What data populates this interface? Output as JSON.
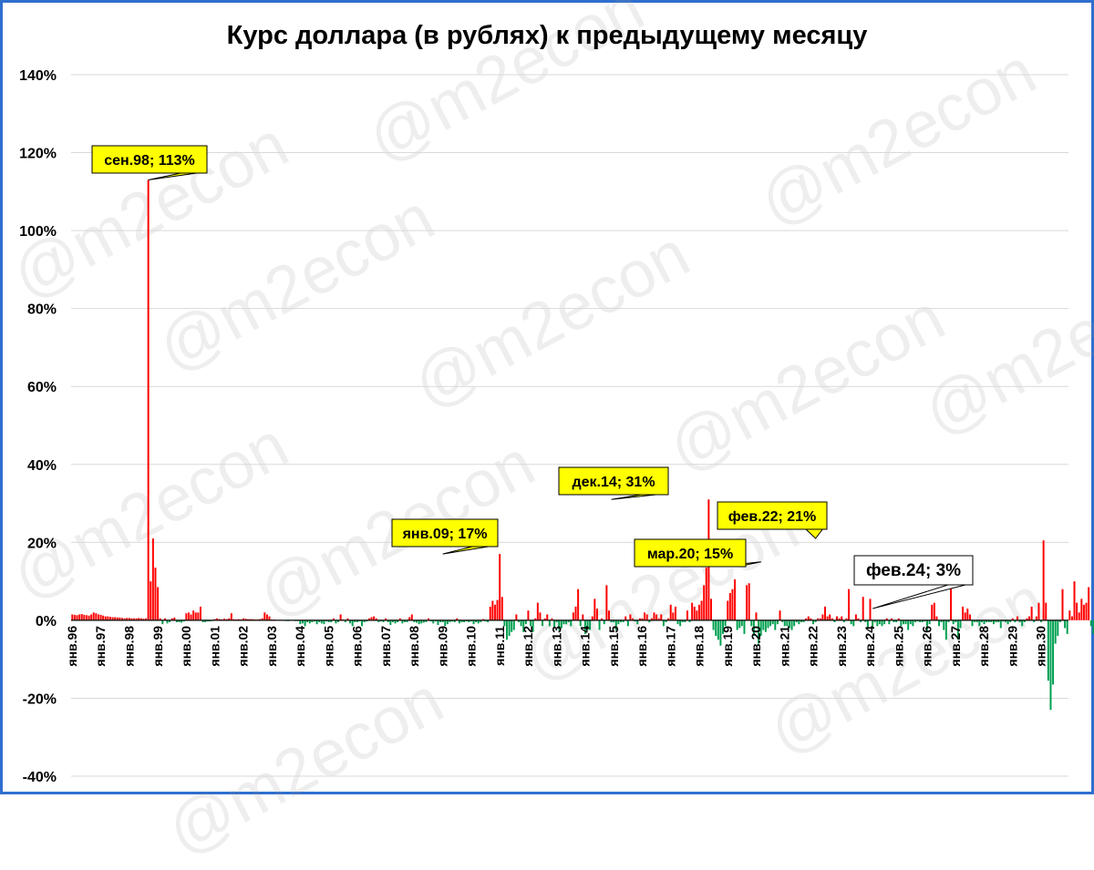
{
  "watermark": "@m2econ",
  "chart_data": {
    "type": "bar",
    "title": "Курс доллара (в рублях) к предыдущему месяцу",
    "xlabel": "",
    "ylabel": "",
    "ylim": [
      -40,
      140
    ],
    "y_ticks": [
      "-40%",
      "-20%",
      "0%",
      "20%",
      "40%",
      "60%",
      "80%",
      "100%",
      "120%",
      "140%"
    ],
    "y_tick_values": [
      -40,
      -20,
      0,
      20,
      40,
      60,
      80,
      100,
      120,
      140
    ],
    "x_tick_labels": [
      "янв.96",
      "янв.97",
      "янв.98",
      "янв.99",
      "янв.00",
      "янв.01",
      "янв.02",
      "янв.03",
      "янв.04",
      "янв.05",
      "янв.06",
      "янв.07",
      "янв.08",
      "янв.09",
      "янв.10",
      "янв.11",
      "янв.12",
      "янв.13",
      "янв.14",
      "янв.15",
      "янв.16",
      "янв.17",
      "янв.18",
      "янв.19",
      "янв.20",
      "янв.21",
      "янв.22",
      "янв.23",
      "янв.24",
      "янв.25",
      "янв.26",
      "янв.27",
      "янв.28",
      "янв.29",
      "янв.30"
    ],
    "start": "янв.96",
    "grid": true,
    "positive_color": "#ff0000",
    "negative_color": "#00a050",
    "callout_color": "#ffff00",
    "series": [
      {
        "values": [
          1.5,
          1.4,
          1.3,
          1.5,
          1.6,
          1.4,
          1.3,
          1.2,
          1.5,
          2.0,
          1.8,
          1.5,
          1.4,
          1.2,
          1.0,
          1.0,
          0.9,
          0.8,
          0.8,
          0.7,
          0.7,
          0.6,
          0.5,
          0.6,
          0.6,
          0.5,
          0.5,
          0.5,
          0.6,
          0.5,
          0.4,
          0.5,
          113,
          10,
          21,
          13.5,
          8.5,
          0.5,
          -1,
          0.5,
          -0.8,
          -0.5,
          0.5,
          0.7,
          -0.5,
          -0.5,
          -0.6,
          -0.3,
          1.8,
          2.0,
          1.5,
          2.5,
          2.0,
          2.0,
          3.5,
          -0.5,
          -0.5,
          -0.3,
          -0.3,
          -0.2,
          0.3,
          0.5,
          0.3,
          0.2,
          0.4,
          0.3,
          0.5,
          1.8,
          0.3,
          0.2,
          0.3,
          0.2,
          0.5,
          0.4,
          0.3,
          0.3,
          0.3,
          0.2,
          0.2,
          0.3,
          0.5,
          2.0,
          1.5,
          1.0,
          0.2,
          0.2,
          0.1,
          0.1,
          0.1,
          -0.1,
          -0.2,
          -0.2,
          -0.1,
          -0.1,
          -0.2,
          -0.2,
          -1.0,
          -0.8,
          -1.5,
          -0.5,
          -0.8,
          -0.5,
          -0.3,
          -1.0,
          -0.5,
          -0.8,
          -1.0,
          -0.3,
          -0.5,
          -0.5,
          0.5,
          -0.8,
          -0.5,
          1.5,
          0.2,
          -0.5,
          0.5,
          -0.8,
          -1.5,
          -0.5,
          -0.5,
          -0.3,
          -1.5,
          -0.5,
          -0.3,
          0.5,
          0.8,
          1.0,
          0.5,
          -0.5,
          -0.3,
          -0.5,
          0.5,
          -0.5,
          -1.2,
          -0.5,
          -0.8,
          -0.5,
          0.5,
          -0.8,
          -0.5,
          -0.5,
          0.8,
          1.5,
          -0.5,
          -0.6,
          -1.0,
          -0.8,
          -0.6,
          -0.5,
          0.5,
          -0.3,
          -0.8,
          -0.3,
          -1.2,
          -0.5,
          -0.5,
          -1.5,
          -1.0,
          -0.5,
          -0.3,
          -0.5,
          0.5,
          -0.8,
          -0.5,
          -0.5,
          -0.3,
          -0.5,
          -0.3,
          -1.0,
          -0.5,
          -0.8,
          -0.5,
          0.3,
          -0.3,
          -0.5,
          3.5,
          5.0,
          4.0,
          5.2,
          17,
          6.0,
          -1.5,
          -5.0,
          -4.0,
          -3.0,
          -2.5,
          1.5,
          -0.5,
          -1.5,
          -3.0,
          -1.0,
          2.5,
          -1.5,
          -3.0,
          0.5,
          4.5,
          2.0,
          -1.5,
          0.5,
          1.5,
          -1.5,
          0.5,
          -2.0,
          -0.5,
          -2.5,
          -2.0,
          -1.0,
          -1.0,
          -0.5,
          -1.5,
          2.0,
          3.5,
          8.0,
          -1.5,
          1.5,
          -3.5,
          -2.5,
          -2.5,
          1.0,
          5.5,
          3.0,
          -2.5,
          0.5,
          -1.0,
          9.0,
          2.5,
          -0.5,
          -0.5,
          -2.5,
          -1.0,
          -0.5,
          -0.5,
          1.0,
          -1.5,
          1.5,
          0.5,
          -0.3,
          -1.0,
          0.5,
          0.5,
          2.0,
          1.5,
          -0.5,
          0.5,
          2.0,
          1.5,
          0.5,
          1.5,
          -1.5,
          -0.5,
          0.5,
          4.0,
          2.0,
          3.5,
          -1.0,
          -1.5,
          -0.5,
          -0.5,
          2.5,
          -0.5,
          4.5,
          3.5,
          2.5,
          4.0,
          5.0,
          9.0,
          13.5,
          31,
          5.5,
          -2.5,
          -4.0,
          -5.0,
          -6.5,
          -3.5,
          -1.5,
          5.0,
          7.0,
          8.0,
          10.5,
          -2.5,
          -2.0,
          -1.5,
          -3.5,
          9.0,
          9.5,
          -1.5,
          -4.0,
          2.0,
          -6.0,
          -4.0,
          -2.5,
          -3.0,
          -2.0,
          -1.5,
          -1.0,
          -2.5,
          -1.0,
          2.5,
          -0.5,
          -1.5,
          -1.5,
          -2.0,
          -2.5,
          -1.5,
          -0.5,
          -1.0,
          -0.5,
          -0.5,
          0.5,
          1.0,
          0.5,
          -1.0,
          -0.5,
          0.5,
          0.5,
          1.5,
          3.5,
          1.0,
          1.5,
          0.5,
          -0.5,
          1.0,
          0.5,
          1.0,
          -0.5,
          0.5,
          8.0,
          -1.0,
          -1.5,
          1.5,
          0.5,
          -0.5,
          6.0,
          -0.5,
          -2.0,
          5.5,
          -2.0,
          -0.5,
          -1.5,
          -1.0,
          -1.5,
          -1.0,
          0.5,
          -1.0,
          0.5,
          -0.5,
          -0.5,
          0.5,
          -1.5,
          -1.0,
          -1.0,
          -2.5,
          -1.0,
          -1.5,
          -0.5,
          -0.3,
          -0.5,
          -0.5,
          -0.3,
          -2.5,
          -1.0,
          4.0,
          4.5,
          1.0,
          -1.5,
          -0.5,
          -2.5,
          -5.0,
          -0.5,
          15,
          -1.0,
          -0.5,
          -5.0,
          -2.0,
          3.5,
          2.0,
          3.0,
          1.5,
          -1.5,
          -0.5,
          -0.5,
          -1.5,
          -0.5,
          -1.0,
          -0.5,
          -0.5,
          -0.5,
          -1.0,
          -0.5,
          -0.5,
          -2.0,
          -0.3,
          -0.5,
          -1.0,
          -0.5,
          0.5,
          -0.5,
          1.0,
          -0.5,
          -1.5,
          -0.5,
          0.5,
          1.0,
          3.5,
          -0.5,
          1.0,
          4.5,
          -0.5,
          20.5,
          4.5,
          -15.5,
          -23,
          -16.5,
          -6.0,
          -4.0,
          -0.5,
          8.0,
          -2.0,
          -3.5,
          2.5,
          1.0,
          10.0,
          4.5,
          2.0,
          5.5,
          4.0,
          4.5,
          8.5,
          -1.5,
          -3.5,
          -4.0,
          -1.5,
          6.0,
          -0.5,
          -0.5,
          -2.0,
          -1.5,
          0.5,
          -0.5,
          -1.0,
          2.5,
          3.0
        ]
      }
    ],
    "annotations": [
      {
        "text": "сен.98; 113%",
        "month_index": 32,
        "value": 113,
        "style": "yellow"
      },
      {
        "text": "янв.09; 17%",
        "month_index": 156,
        "value": 17,
        "style": "yellow"
      },
      {
        "text": "дек.14; 31%",
        "month_index": 227,
        "value": 31,
        "style": "yellow"
      },
      {
        "text": "мар.20; 15%",
        "month_index": 290,
        "value": 15,
        "style": "yellow"
      },
      {
        "text": "фев.22; 21%",
        "month_index": 313,
        "value": 21,
        "style": "yellow"
      },
      {
        "text": "фев.24; 3%",
        "month_index": 337,
        "value": 3,
        "style": "white"
      }
    ]
  }
}
